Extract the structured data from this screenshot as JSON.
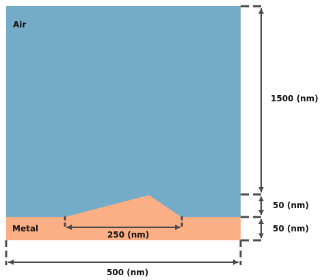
{
  "regions": {
    "air": {
      "label": "Air",
      "color": "#74acc7"
    },
    "metal": {
      "label": "Metal",
      "color": "#fcae84"
    }
  },
  "dimensions": {
    "air_height": "1500 (nm)",
    "bump_height": "50 (nm)",
    "metal_height": "50 (nm)",
    "bump_width": "250 (nm)",
    "total_width": "500 (nm)"
  },
  "dimension_line_color": "#4a4a4a"
}
